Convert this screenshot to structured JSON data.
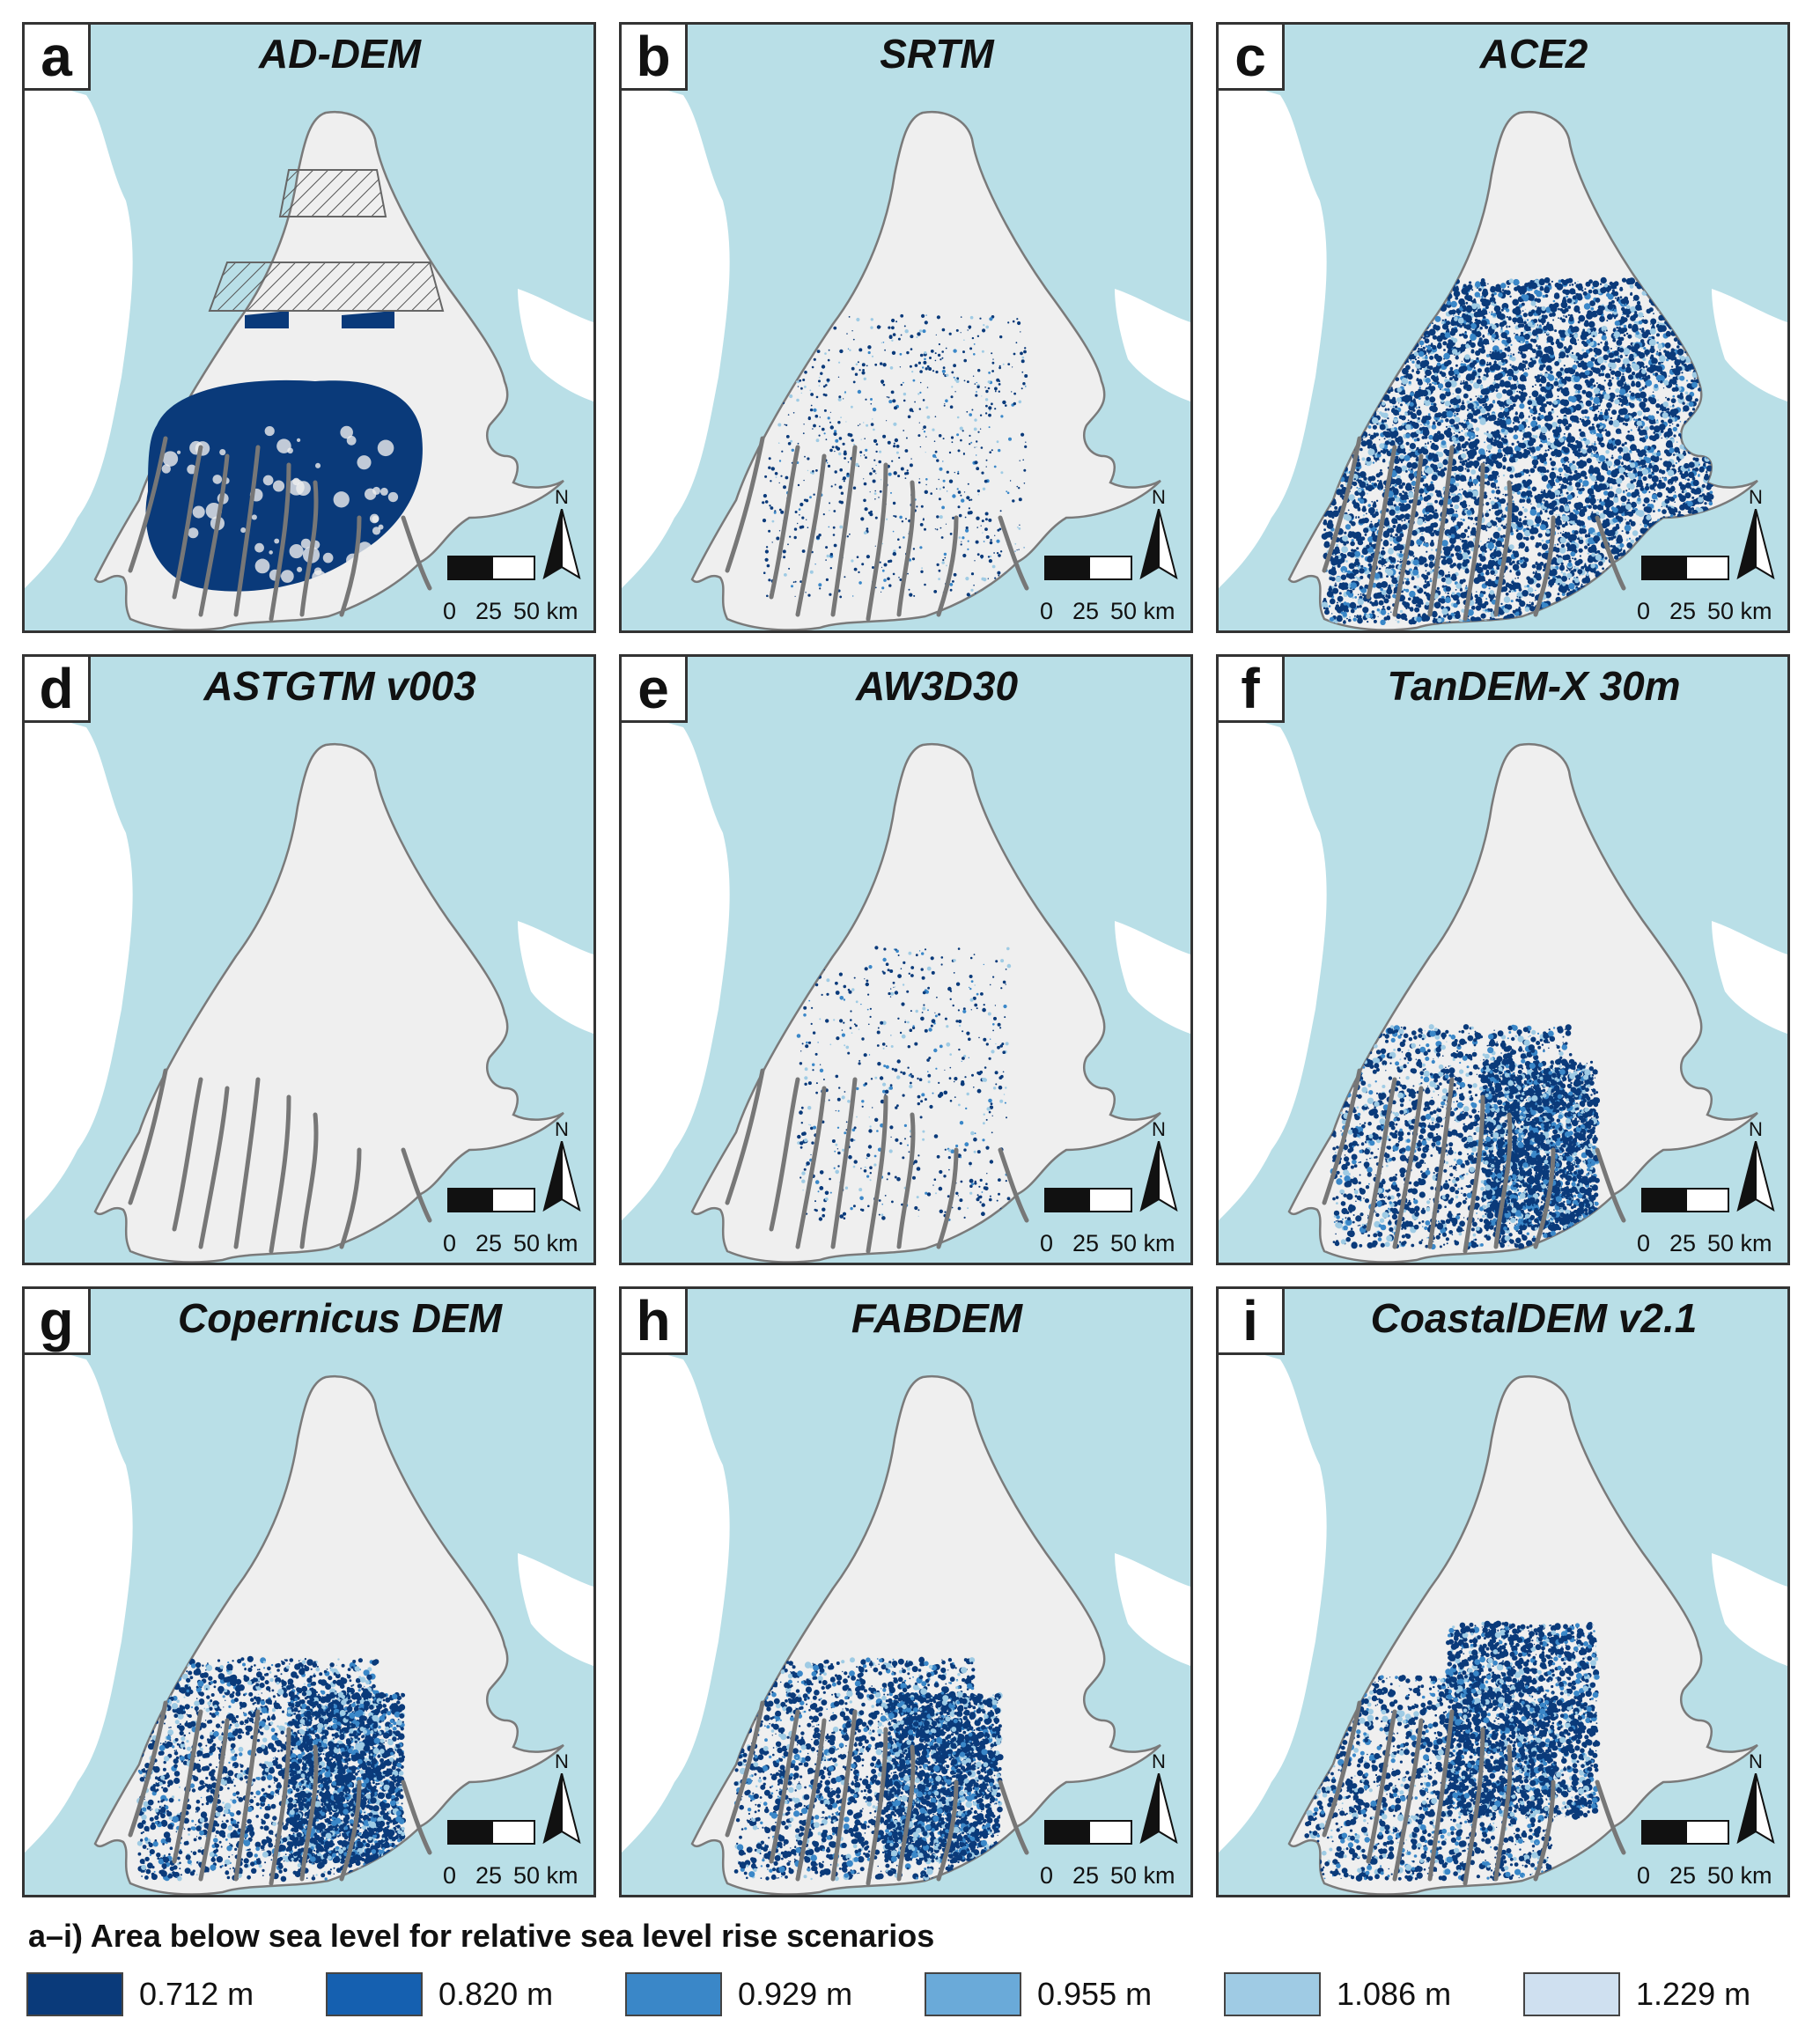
{
  "panels": [
    {
      "letter": "a",
      "title": "AD-DEM",
      "pattern": "blob"
    },
    {
      "letter": "b",
      "title": "SRTM",
      "pattern": "sparse"
    },
    {
      "letter": "c",
      "title": "ACE2",
      "pattern": "dense"
    },
    {
      "letter": "d",
      "title": "ASTGTM v003",
      "pattern": "none"
    },
    {
      "letter": "e",
      "title": "AW3D30",
      "pattern": "light"
    },
    {
      "letter": "f",
      "title": "TanDEM-X 30m",
      "pattern": "southeast"
    },
    {
      "letter": "g",
      "title": "Copernicus DEM",
      "pattern": "southeast"
    },
    {
      "letter": "h",
      "title": "FABDEM",
      "pattern": "southeast"
    },
    {
      "letter": "i",
      "title": "CoastalDEM v2.1",
      "pattern": "southwest"
    }
  ],
  "scale": {
    "labels": [
      "0",
      "25",
      "50 km"
    ],
    "north_label": "N"
  },
  "legend": {
    "title": "a–i) Area below sea level for relative sea level rise scenarios",
    "items": [
      {
        "label": "0.712 m",
        "color": "#0a3a7a"
      },
      {
        "label": "0.820 m",
        "color": "#1560b0"
      },
      {
        "label": "0.929 m",
        "color": "#3a87c8"
      },
      {
        "label": "0.955 m",
        "color": "#6aaad9"
      },
      {
        "label": "1.086 m",
        "color": "#9fcbe4"
      },
      {
        "label": "1.229 m",
        "color": "#cfe0f0"
      }
    ]
  },
  "colors": {
    "sea": "#b9dfe7",
    "land": "#efefef",
    "channels": "#777777",
    "flood": "#0a3a7a"
  }
}
